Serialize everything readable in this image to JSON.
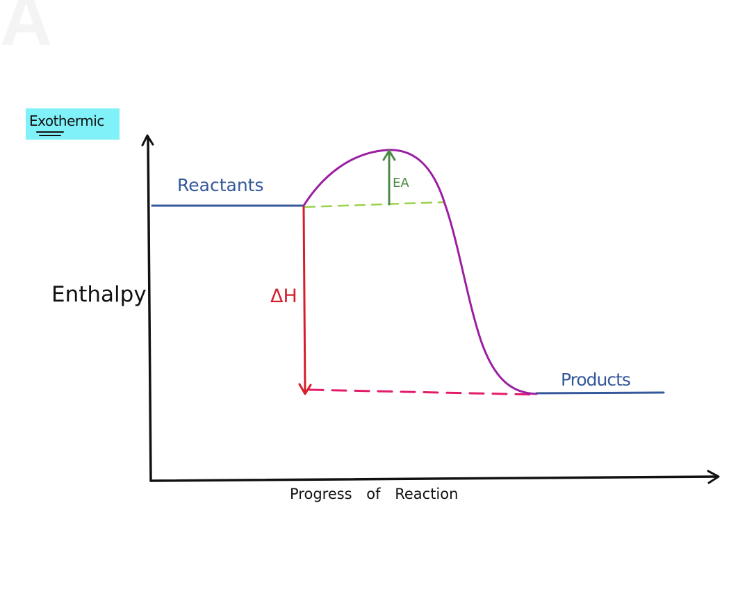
{
  "panel_letter": "A",
  "badge": {
    "text": "Exothermic",
    "color": "#80f1f8"
  },
  "labels": {
    "reactants": "Reactants",
    "products": "Products",
    "y_axis": "Enthalpy",
    "x_axis": "Progress of Reaction",
    "delta_h": "ΔH",
    "activation_energy": "EA"
  },
  "colors": {
    "axes": "#111111",
    "energy_levels": "#34589a",
    "reaction_curve": "#9b1fa3",
    "delta_h_arrow": "#d51e2b",
    "activation_arrow": "#4d8a46",
    "activation_baseline": "#9bd24a",
    "products_dashed": "#e21b6a"
  }
}
